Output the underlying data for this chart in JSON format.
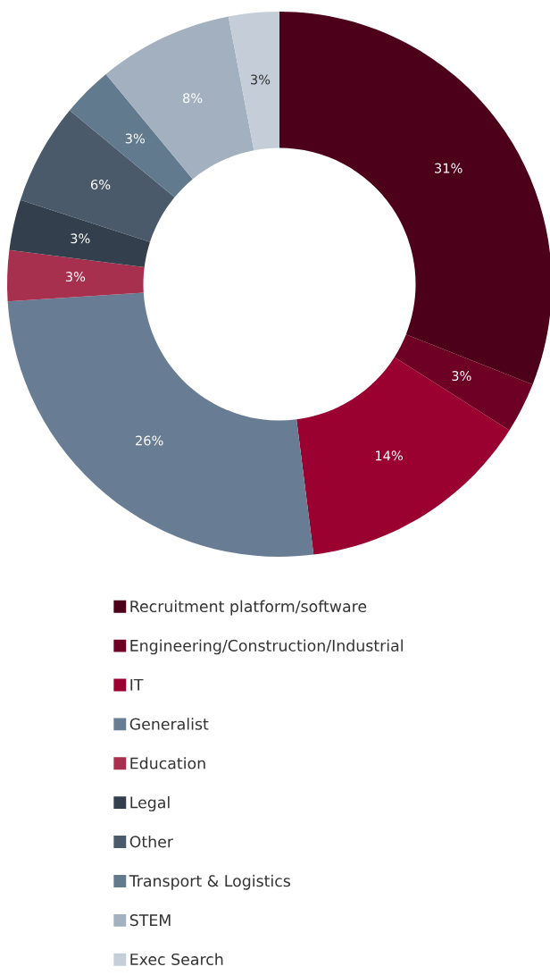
{
  "chart_data": {
    "type": "donut",
    "categories": [
      "Recruitment platform/software",
      "Engineering/Construction/Industrial",
      "IT",
      "Generalist",
      "Education",
      "Legal",
      "Other",
      "Transport & Logistics",
      "STEM",
      "Exec Search"
    ],
    "values": [
      31,
      3,
      14,
      26,
      3,
      3,
      6,
      3,
      8,
      3
    ],
    "colors": [
      "#4d0019",
      "#6d0024",
      "#9a0030",
      "#687d93",
      "#a8304f",
      "#333f4c",
      "#4b5a6a",
      "#627a8e",
      "#a3b0bf",
      "#c5ced8"
    ],
    "value_labels": [
      "31%",
      "3%",
      "14%",
      "26%",
      "3%",
      "3%",
      "6%",
      "3%",
      "8%",
      "3%"
    ],
    "legend": "bottom"
  }
}
